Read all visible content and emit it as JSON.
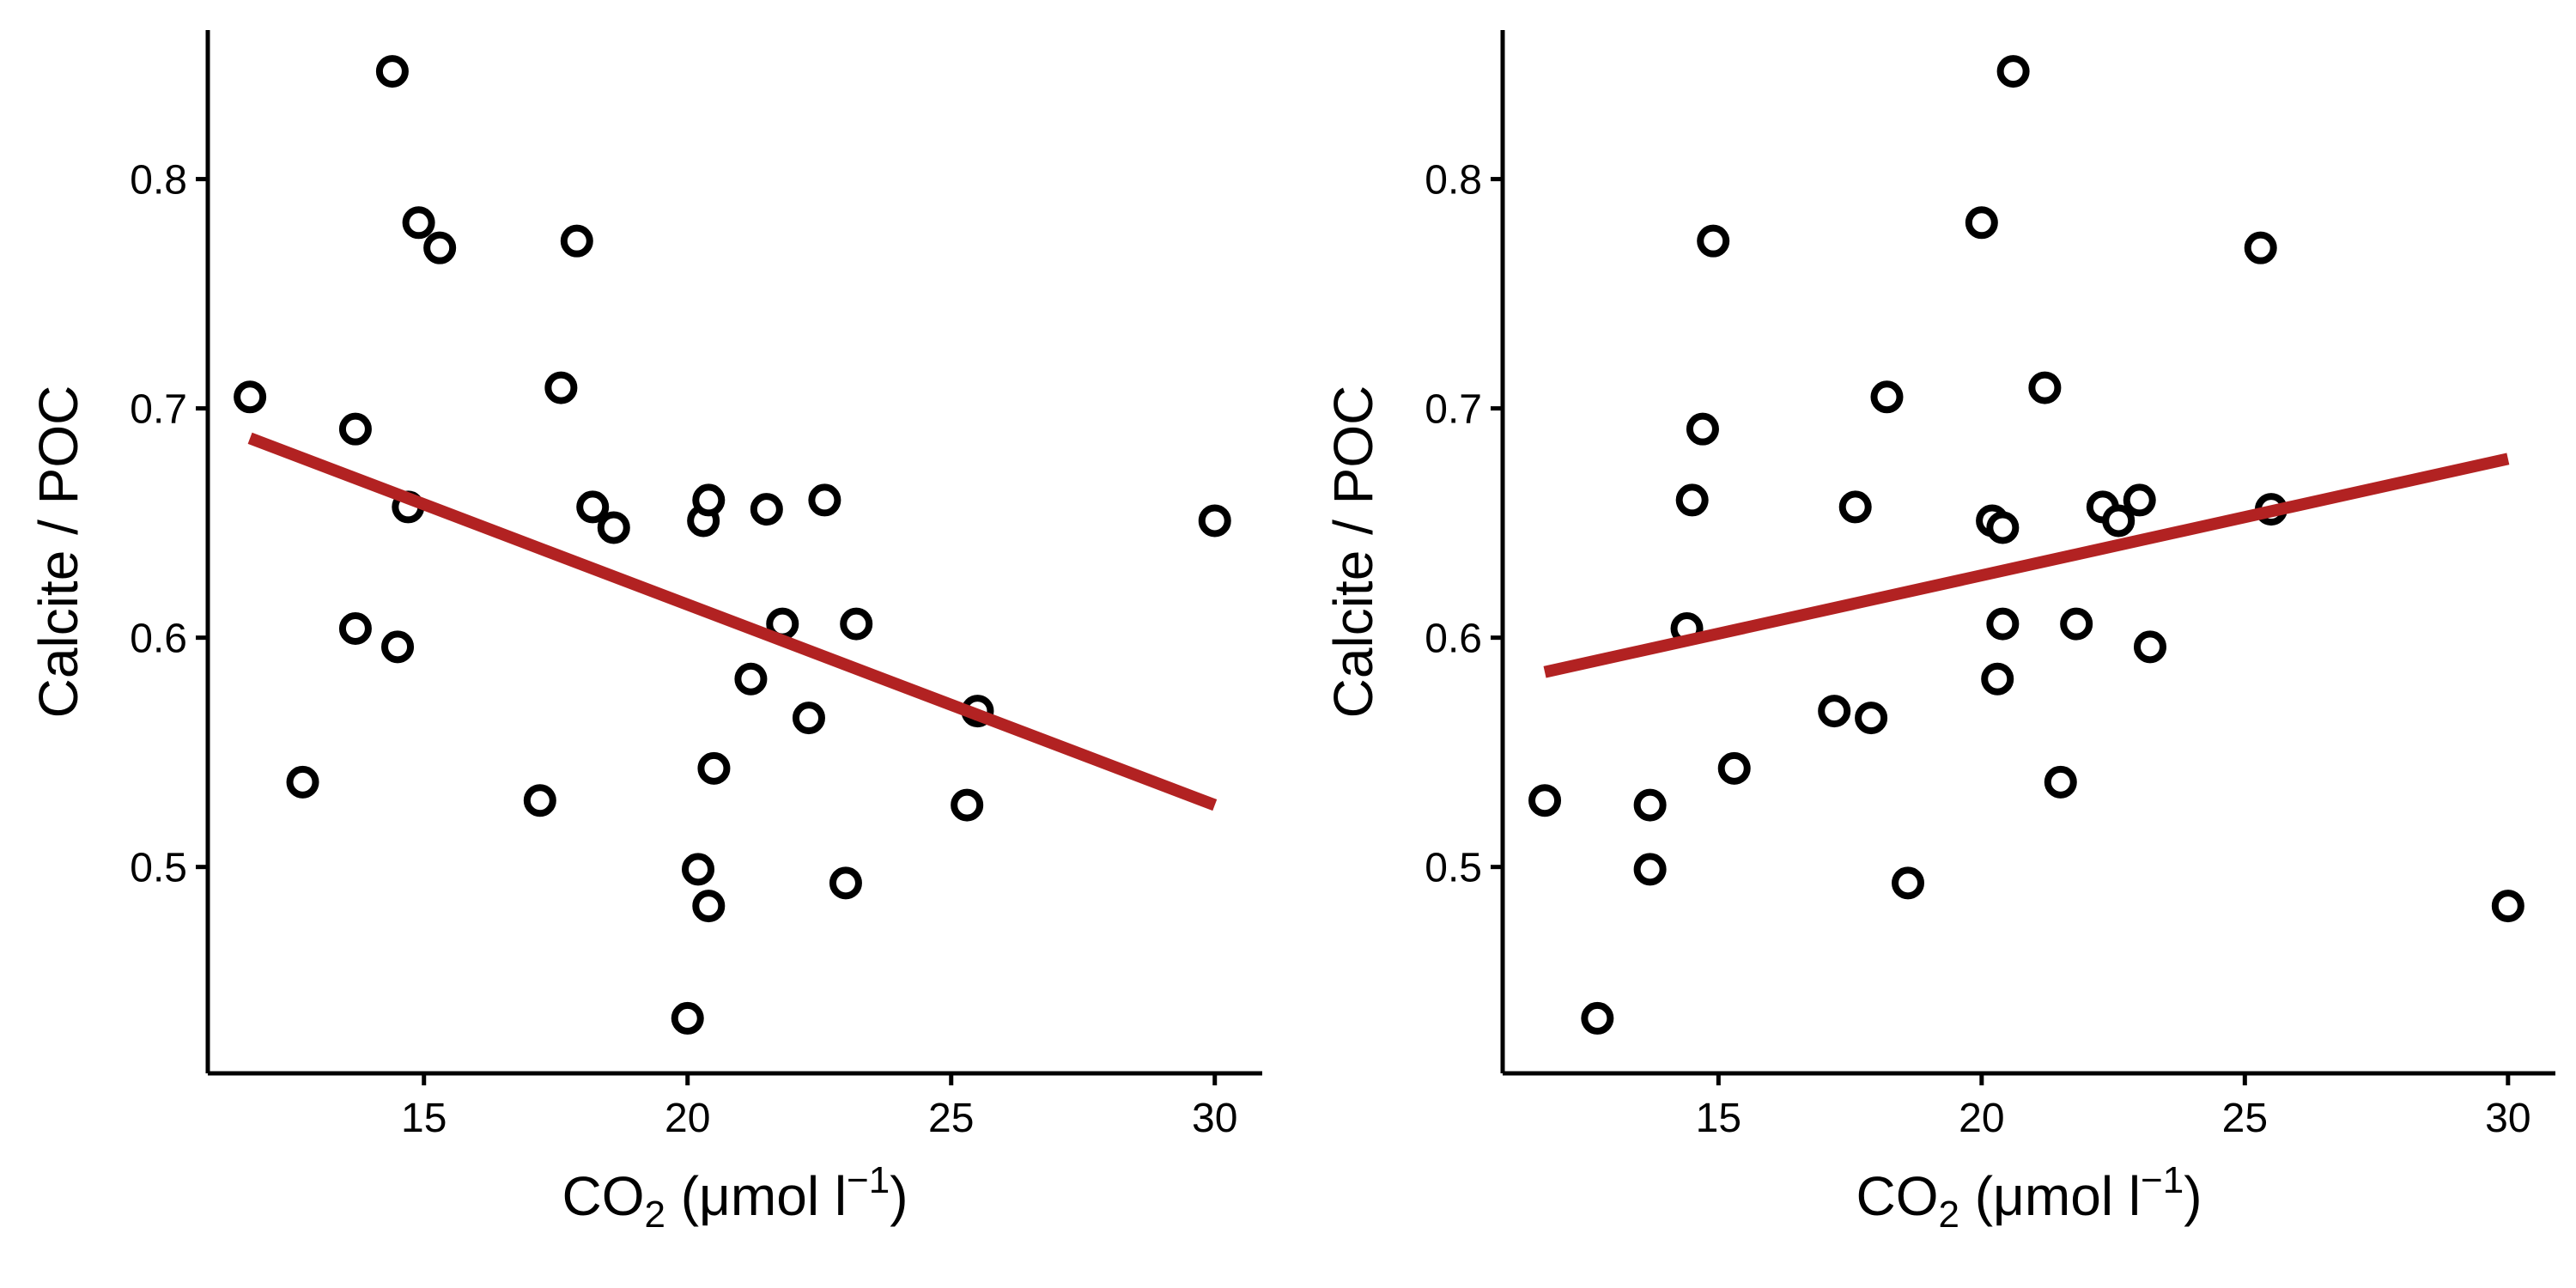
{
  "colors": {
    "fit": "#B22222",
    "points": "#000000",
    "background": "#ffffff"
  },
  "chart_data": [
    {
      "type": "scatter",
      "x_label": {
        "main": "CO",
        "sub": "2",
        "unit_open": " (μmol l",
        "sup": "−1",
        "unit_close": ")"
      },
      "ylabel": "Calcite / POC",
      "xlim": [
        10.9,
        30.9
      ],
      "ylim": [
        0.41,
        0.865
      ],
      "xticks": [
        15,
        20,
        25,
        30
      ],
      "yticks": [
        0.5,
        0.6,
        0.7,
        0.8
      ],
      "xtick_labels": [
        "15",
        "20",
        "25",
        "30"
      ],
      "ytick_labels": [
        "0.5",
        "0.6",
        "0.7",
        "0.8"
      ],
      "grid": false,
      "legend": "none",
      "fit": {
        "x": [
          11.7,
          30.0
        ],
        "y": [
          0.687,
          0.527
        ]
      },
      "points": [
        {
          "x": 11.7,
          "y": 0.705
        },
        {
          "x": 12.7,
          "y": 0.537
        },
        {
          "x": 13.7,
          "y": 0.604
        },
        {
          "x": 13.7,
          "y": 0.691
        },
        {
          "x": 14.4,
          "y": 0.847
        },
        {
          "x": 14.5,
          "y": 0.596
        },
        {
          "x": 14.7,
          "y": 0.657
        },
        {
          "x": 14.9,
          "y": 0.781
        },
        {
          "x": 15.3,
          "y": 0.77
        },
        {
          "x": 17.2,
          "y": 0.529
        },
        {
          "x": 17.6,
          "y": 0.709
        },
        {
          "x": 17.9,
          "y": 0.773
        },
        {
          "x": 18.2,
          "y": 0.657
        },
        {
          "x": 18.6,
          "y": 0.648
        },
        {
          "x": 20.0,
          "y": 0.434
        },
        {
          "x": 20.2,
          "y": 0.499
        },
        {
          "x": 20.3,
          "y": 0.651
        },
        {
          "x": 20.4,
          "y": 0.66
        },
        {
          "x": 20.4,
          "y": 0.483
        },
        {
          "x": 20.5,
          "y": 0.543
        },
        {
          "x": 21.2,
          "y": 0.582
        },
        {
          "x": 21.5,
          "y": 0.656
        },
        {
          "x": 21.8,
          "y": 0.606
        },
        {
          "x": 22.3,
          "y": 0.565
        },
        {
          "x": 22.6,
          "y": 0.66
        },
        {
          "x": 23.0,
          "y": 0.493
        },
        {
          "x": 23.2,
          "y": 0.606
        },
        {
          "x": 25.3,
          "y": 0.527
        },
        {
          "x": 25.5,
          "y": 0.568
        },
        {
          "x": 30.0,
          "y": 0.651
        }
      ]
    },
    {
      "type": "scatter",
      "x_label": {
        "main": "CO",
        "sub": "2",
        "unit_open": " (μmol l",
        "sup": "−1",
        "unit_close": ")"
      },
      "ylabel": "Calcite / POC",
      "xlim": [
        10.9,
        30.9
      ],
      "ylim": [
        0.41,
        0.865
      ],
      "xticks": [
        15,
        20,
        25,
        30
      ],
      "yticks": [
        0.5,
        0.6,
        0.7,
        0.8
      ],
      "xtick_labels": [
        "15",
        "20",
        "25",
        "30"
      ],
      "ytick_labels": [
        "0.5",
        "0.6",
        "0.7",
        "0.8"
      ],
      "grid": false,
      "legend": "none",
      "fit": {
        "x": [
          11.7,
          30.0
        ],
        "y": [
          0.585,
          0.678
        ]
      },
      "points": [
        {
          "x": 11.7,
          "y": 0.529
        },
        {
          "x": 12.7,
          "y": 0.434
        },
        {
          "x": 13.7,
          "y": 0.527
        },
        {
          "x": 13.7,
          "y": 0.499
        },
        {
          "x": 14.4,
          "y": 0.604
        },
        {
          "x": 14.5,
          "y": 0.66
        },
        {
          "x": 14.7,
          "y": 0.691
        },
        {
          "x": 14.9,
          "y": 0.773
        },
        {
          "x": 15.3,
          "y": 0.543
        },
        {
          "x": 17.2,
          "y": 0.568
        },
        {
          "x": 17.6,
          "y": 0.657
        },
        {
          "x": 17.9,
          "y": 0.565
        },
        {
          "x": 18.2,
          "y": 0.705
        },
        {
          "x": 18.6,
          "y": 0.493
        },
        {
          "x": 20.0,
          "y": 0.781
        },
        {
          "x": 20.2,
          "y": 0.651
        },
        {
          "x": 20.3,
          "y": 0.582
        },
        {
          "x": 20.4,
          "y": 0.606
        },
        {
          "x": 20.4,
          "y": 0.648
        },
        {
          "x": 20.6,
          "y": 0.847
        },
        {
          "x": 21.2,
          "y": 0.709
        },
        {
          "x": 21.5,
          "y": 0.537
        },
        {
          "x": 21.8,
          "y": 0.606
        },
        {
          "x": 22.3,
          "y": 0.657
        },
        {
          "x": 22.6,
          "y": 0.651
        },
        {
          "x": 23.0,
          "y": 0.66
        },
        {
          "x": 23.2,
          "y": 0.596
        },
        {
          "x": 25.3,
          "y": 0.77
        },
        {
          "x": 25.5,
          "y": 0.656
        },
        {
          "x": 30.0,
          "y": 0.483
        }
      ]
    }
  ]
}
